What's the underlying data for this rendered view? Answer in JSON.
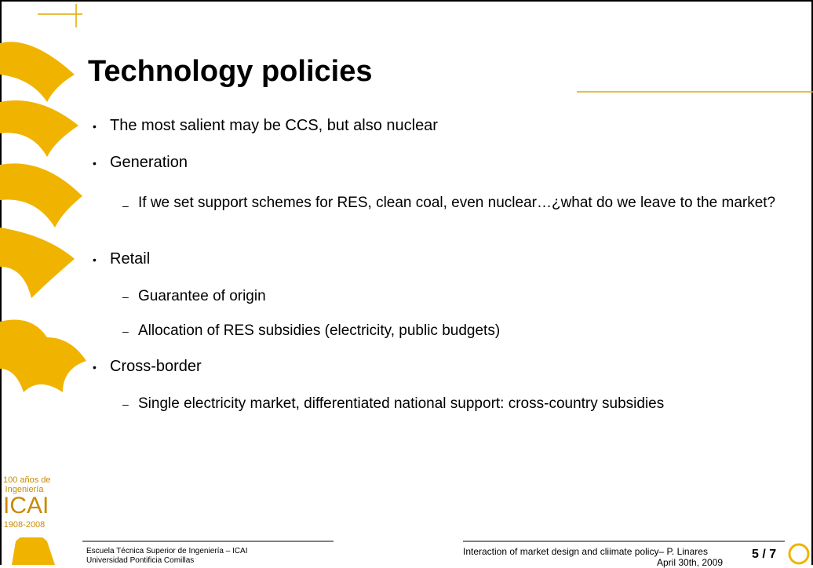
{
  "slide": {
    "title": "Technology policies",
    "bullets": [
      {
        "text": "The most salient may be CCS, but also nuclear",
        "sub": []
      },
      {
        "text": "Generation",
        "sub": [
          "If we set support schemes for RES, clean coal, even nuclear…¿what do we leave to the market?"
        ]
      },
      {
        "text": "Retail",
        "sub": [
          "Guarantee of origin",
          "Allocation of RES subsidies (electricity, public budgets)"
        ]
      },
      {
        "text": "Cross-border",
        "sub": [
          "Single electricity market, differentiated national support: cross-country subsidies"
        ]
      }
    ],
    "logo": {
      "line1": "100 años de",
      "line2": "Ingeniería",
      "name": "ICAI",
      "years": "1908-2008"
    },
    "footer": {
      "school": "Escuela Técnica Superior de Ingeniería – ICAI",
      "university": "Universidad Pontificia Comillas",
      "talk": "Interaction of market design and cliimate policy– P. Linares",
      "date": "April 30th, 2009",
      "page": "5 / 7"
    }
  }
}
